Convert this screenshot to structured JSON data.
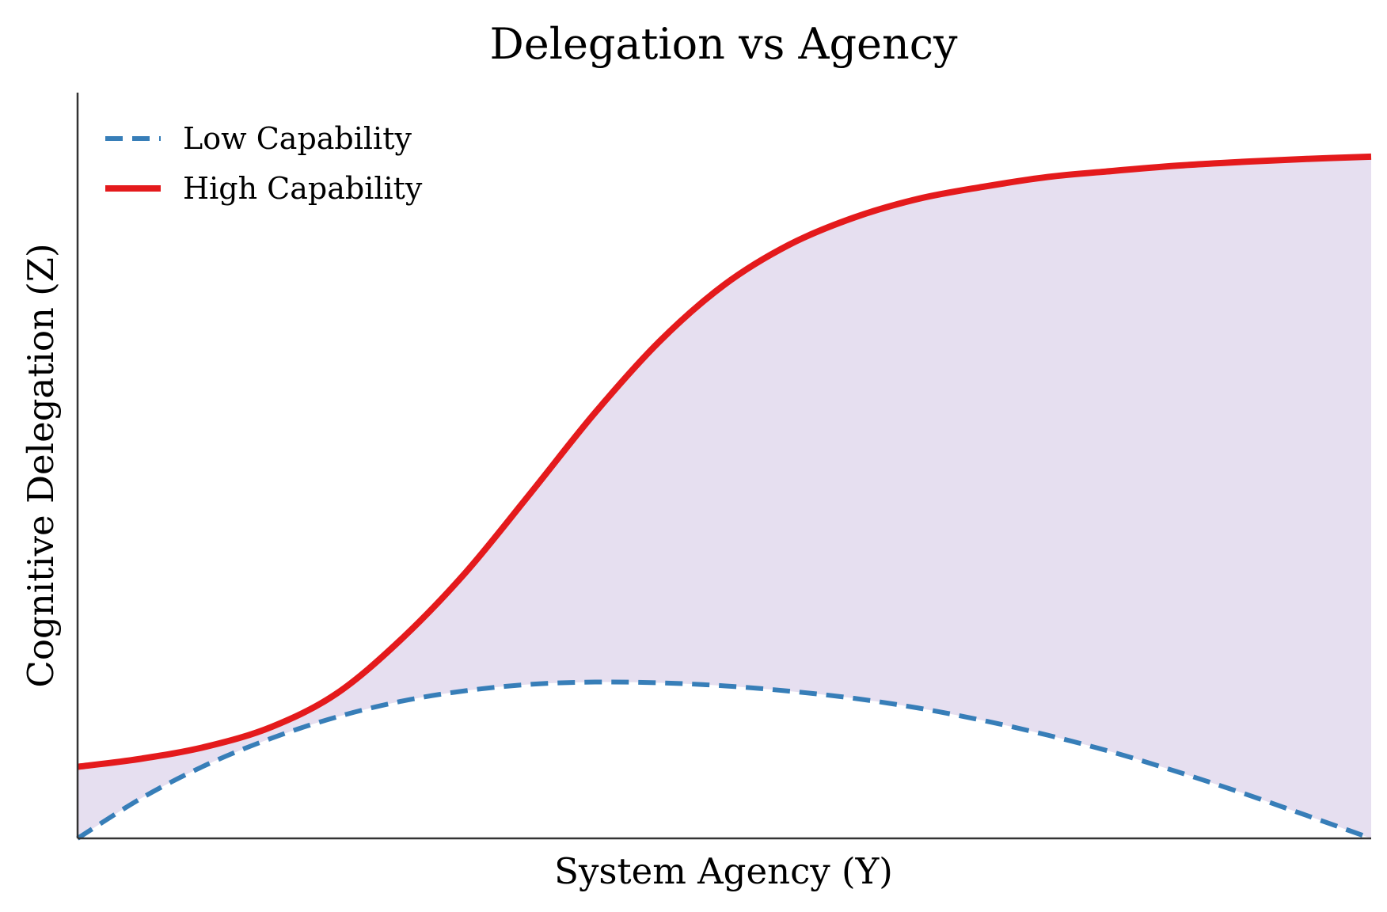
{
  "chart_data": {
    "type": "line",
    "title": "Delegation vs Agency",
    "xlabel": "System Agency (Y)",
    "ylabel": "Cognitive Delegation (Z)",
    "xlim": [
      0,
      1
    ],
    "ylim": [
      0,
      1
    ],
    "grid": false,
    "legend_position": "top-left",
    "x": [
      0,
      0.05,
      0.1,
      0.15,
      0.2,
      0.25,
      0.3,
      0.35,
      0.4,
      0.45,
      0.5,
      0.55,
      0.6,
      0.65,
      0.7,
      0.75,
      0.8,
      0.85,
      0.9,
      0.95,
      1.0
    ],
    "series": [
      {
        "name": "Low Capability",
        "color": "#377eb8",
        "style": "dashed",
        "values": [
          0.0,
          0.054,
          0.098,
          0.133,
          0.161,
          0.182,
          0.196,
          0.2045,
          0.2075,
          0.2065,
          0.2025,
          0.1955,
          0.186,
          0.173,
          0.1565,
          0.137,
          0.1145,
          0.0885,
          0.0605,
          0.0305,
          0.0
        ]
      },
      {
        "name": "High Capability",
        "color": "#e41a1c",
        "style": "solid",
        "values": [
          0.095,
          0.106,
          0.122,
          0.148,
          0.192,
          0.264,
          0.353,
          0.458,
          0.565,
          0.66,
          0.735,
          0.788,
          0.824,
          0.849,
          0.865,
          0.878,
          0.886,
          0.893,
          0.898,
          0.902,
          0.905
        ]
      }
    ],
    "fill_between": {
      "color": "#e6dff0"
    }
  }
}
